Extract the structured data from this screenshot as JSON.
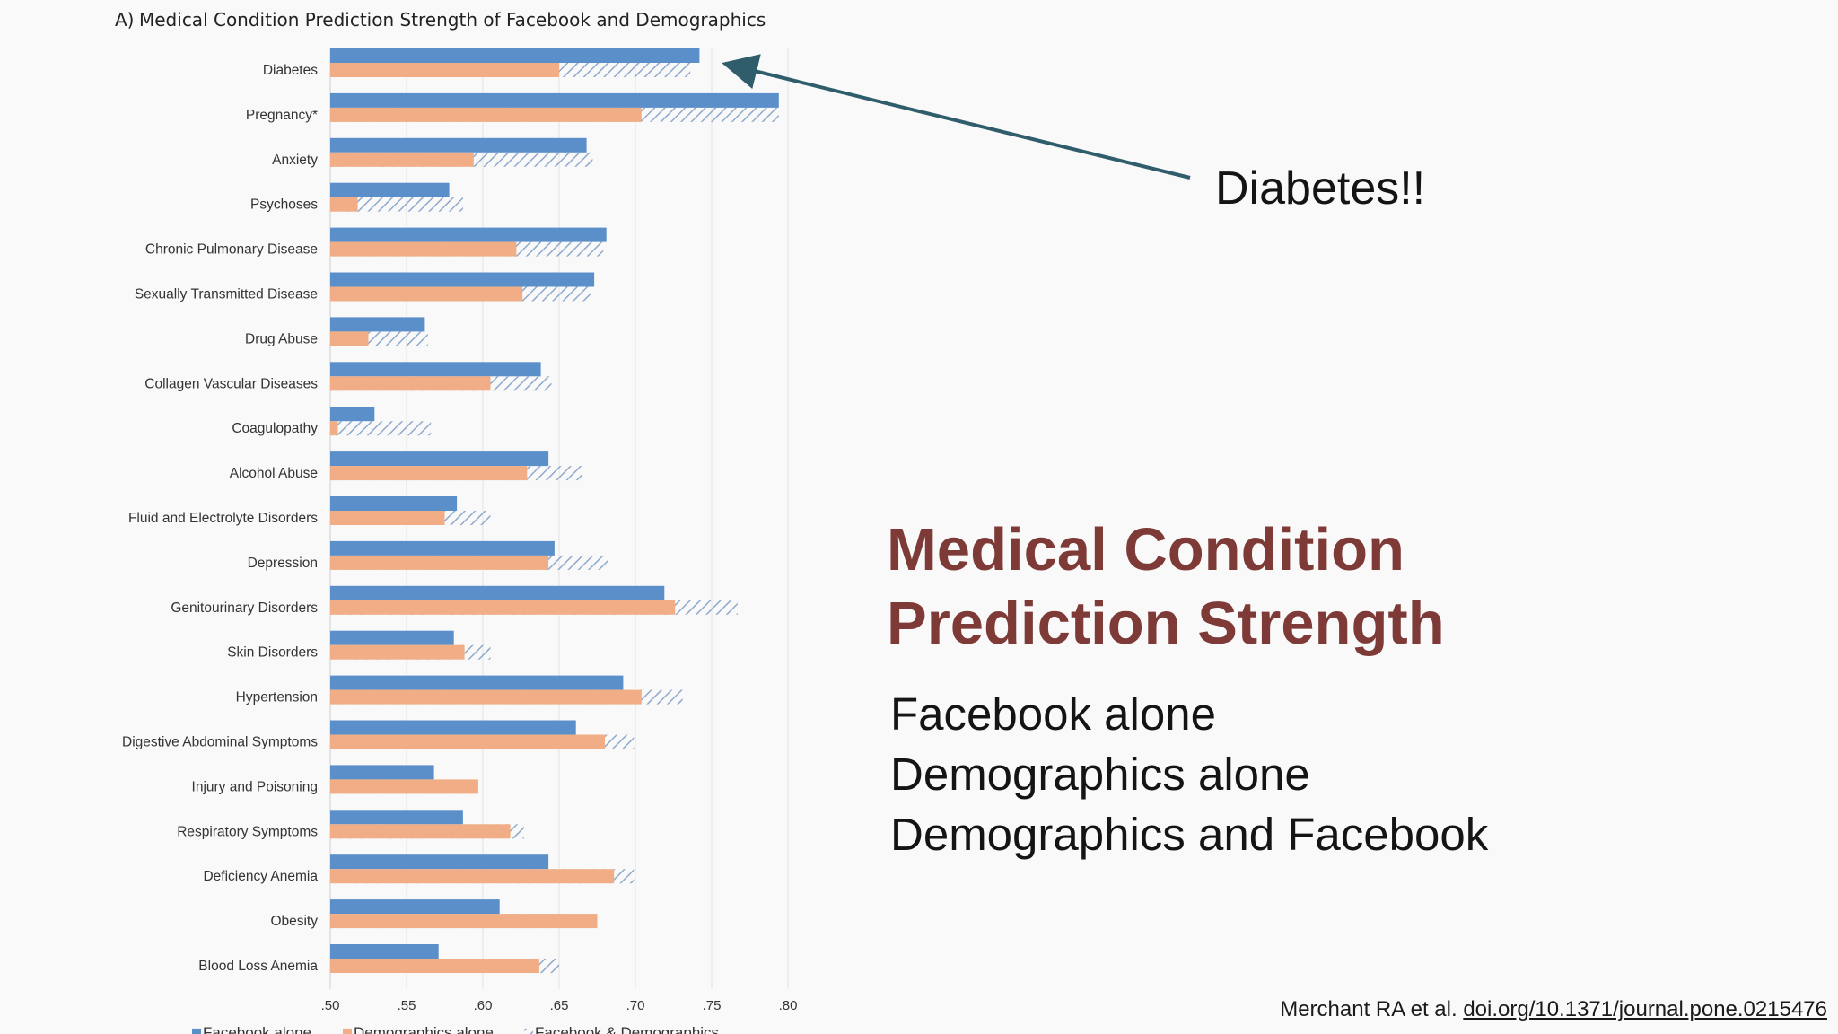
{
  "chart_data": {
    "type": "bar",
    "orientation": "horizontal",
    "title_prefix": "A)",
    "title": "Medical Condition Prediction Strength of Facebook and Demographics",
    "categories": [
      "Diabetes",
      "Pregnancy*",
      "Anxiety",
      "Psychoses",
      "Chronic Pulmonary Disease",
      "Sexually Transmitted Disease",
      "Drug Abuse",
      "Collagen Vascular Diseases",
      "Coagulopathy",
      "Alcohol Abuse",
      "Fluid and Electrolyte Disorders",
      "Depression",
      "Genitourinary Disorders",
      "Skin Disorders",
      "Hypertension",
      "Digestive Abdominal Symptoms",
      "Injury and Poisoning",
      "Respiratory Symptoms",
      "Deficiency Anemia",
      "Obesity",
      "Blood Loss Anemia"
    ],
    "series": [
      {
        "name": "Facebook alone",
        "color": "#5b8fca",
        "values": [
          0.742,
          0.794,
          0.668,
          0.578,
          0.681,
          0.673,
          0.562,
          0.638,
          0.529,
          0.643,
          0.583,
          0.647,
          0.719,
          0.581,
          0.692,
          0.661,
          0.568,
          0.587,
          0.643,
          0.611,
          0.571
        ]
      },
      {
        "name": "Demographics alone",
        "color": "#f0ad86",
        "values": [
          0.65,
          0.704,
          0.594,
          0.518,
          0.622,
          0.626,
          0.525,
          0.605,
          0.505,
          0.629,
          0.575,
          0.643,
          0.726,
          0.588,
          0.704,
          0.68,
          0.597,
          0.618,
          0.686,
          0.675,
          0.637
        ]
      },
      {
        "name": "Facebook & Demographics",
        "color": "#8fa9cc",
        "pattern": "diagonal-hatch",
        "values": [
          0.736,
          0.794,
          0.672,
          0.587,
          0.679,
          0.671,
          0.564,
          0.645,
          0.566,
          0.665,
          0.605,
          0.682,
          0.767,
          0.605,
          0.731,
          0.699,
          0.587,
          0.627,
          0.699,
          0.655,
          0.65
        ]
      }
    ],
    "xticks": [
      ".50",
      ".55",
      ".60",
      ".65",
      ".70",
      ".75",
      ".80"
    ],
    "xlim": [
      0.5,
      0.8
    ],
    "grid": "vertical",
    "legend_position": "bottom"
  },
  "annotation": {
    "text": "Diabetes!!",
    "arrow_color": "#2f5d6b"
  },
  "slide": {
    "title_lines": [
      "Medical Condition",
      "Prediction Strength"
    ],
    "title_color": "#7d3a36",
    "items": [
      "Facebook alone",
      "Demographics alone",
      "Demographics and Facebook"
    ]
  },
  "citation": {
    "prefix": "Merchant RA et al.",
    "link": "doi.org/10.1371/journal.pone.0215476"
  }
}
